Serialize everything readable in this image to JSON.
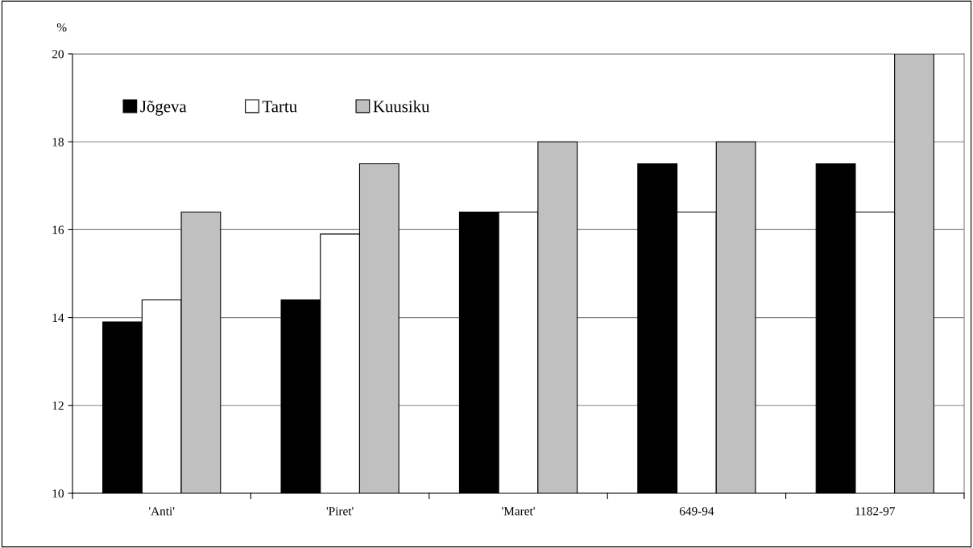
{
  "chart_data": {
    "type": "bar",
    "ylabel": "%",
    "categories": [
      "'Anti'",
      "'Piret'",
      "'Maret'",
      "649-94",
      "1182-97"
    ],
    "series": [
      {
        "name": "Jõgeva",
        "color": "#000000",
        "values": [
          13.9,
          14.4,
          16.4,
          17.5,
          17.5
        ]
      },
      {
        "name": "Tartu",
        "color": "#ffffff",
        "values": [
          14.4,
          15.9,
          16.4,
          16.4,
          16.4
        ]
      },
      {
        "name": "Kuusiku",
        "color": "#c0c0c0",
        "values": [
          16.4,
          17.5,
          18.0,
          18.0,
          20.0
        ]
      }
    ],
    "ylim": [
      10,
      20
    ],
    "yticks": [
      10,
      12,
      14,
      16,
      18,
      20
    ],
    "grid": "y",
    "legend": "top left"
  }
}
